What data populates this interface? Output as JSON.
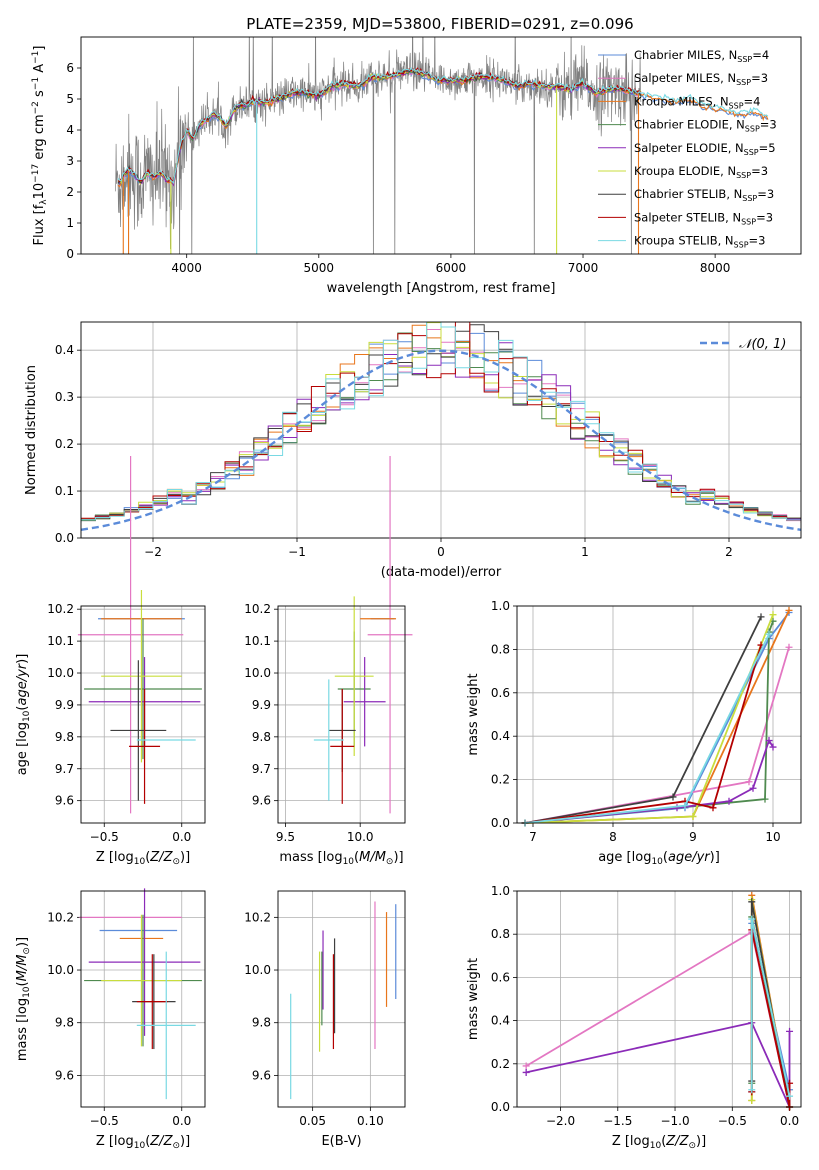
{
  "figure_title": "PLATE=2359, MJD=53800, FIBERID=0291, z=0.096",
  "colors": {
    "chabrier_miles": "#5b8bd9",
    "salpeter_miles": "#e377c2",
    "kroupa_miles": "#e8761c",
    "chabrier_elodie": "#4f8a4f",
    "salpeter_elodie": "#8b2bb8",
    "kroupa_elodie": "#c9dd3d",
    "chabrier_stelib": "#3f3f3f",
    "salpeter_stelib": "#b30000",
    "kroupa_stelib": "#79d9e3",
    "observed": "#808080",
    "normal_curve": "#5b8bd9",
    "grid": "#b0b0b0"
  },
  "chart_data": [
    {
      "id": "spectrum",
      "type": "line",
      "title": "PLATE=2359, MJD=53800, FIBERID=0291, z=0.096",
      "xlabel": "wavelength [Angstrom, rest frame]",
      "ylabel": "Flux [f_λ 10^-17 erg cm^-2 s^-1 A^-1]",
      "xlim": [
        3200,
        8650
      ],
      "ylim": [
        0,
        7
      ],
      "xticks": [
        4000,
        5000,
        6000,
        7000,
        8000
      ],
      "yticks": [
        0,
        1,
        2,
        3,
        4,
        5,
        6
      ],
      "grid": false,
      "legend_position": "top-right",
      "legend": [
        {
          "label": "Chabrier MILES, N_SSP=4",
          "color": "#5b8bd9"
        },
        {
          "label": "Salpeter MILES, N_SSP=3",
          "color": "#e377c2"
        },
        {
          "label": "Kroupa MILES, N_SSP=4",
          "color": "#e8761c"
        },
        {
          "label": "Chabrier ELODIE, N_SSP=3",
          "color": "#4f8a4f"
        },
        {
          "label": "Salpeter ELODIE, N_SSP=5",
          "color": "#8b2bb8"
        },
        {
          "label": "Kroupa ELODIE, N_SSP=3",
          "color": "#c9dd3d"
        },
        {
          "label": "Chabrier STELIB, N_SSP=3",
          "color": "#3f3f3f"
        },
        {
          "label": "Salpeter STELIB, N_SSP=3",
          "color": "#b30000"
        },
        {
          "label": "Kroupa STELIB, N_SSP=3",
          "color": "#79d9e3"
        }
      ],
      "model_curve": {
        "x": [
          3500,
          3530,
          3560,
          3600,
          3650,
          3700,
          3750,
          3800,
          3850,
          3900,
          3950,
          4000,
          4050,
          4100,
          4150,
          4200,
          4250,
          4300,
          4350,
          4400,
          4450,
          4500,
          4550,
          4600,
          4700,
          4800,
          4900,
          5000,
          5100,
          5200,
          5300,
          5400,
          5500,
          5600,
          5700,
          5800,
          5900,
          6000,
          6100,
          6200,
          6300,
          6400,
          6500,
          6600,
          6700,
          6800,
          6900,
          7000,
          7100,
          7200,
          7300,
          7400,
          7500,
          7600,
          7700,
          7800,
          7900,
          8000,
          8100,
          8200,
          8300,
          8400
        ],
        "y": [
          2.3,
          2.6,
          2.7,
          2.6,
          2.3,
          2.6,
          2.5,
          2.6,
          2.4,
          2.3,
          3.4,
          4.0,
          3.7,
          4.2,
          4.3,
          4.5,
          4.4,
          4.1,
          4.6,
          4.8,
          4.8,
          4.9,
          4.9,
          4.9,
          5.0,
          5.2,
          5.2,
          5.1,
          5.4,
          5.5,
          5.4,
          5.7,
          5.7,
          5.8,
          5.9,
          5.8,
          5.6,
          5.6,
          5.6,
          5.7,
          5.7,
          5.6,
          5.4,
          5.5,
          5.4,
          5.4,
          5.3,
          5.5,
          5.2,
          5.3,
          5.3,
          5.2,
          5.1,
          5.0,
          4.9,
          5.0,
          4.8,
          4.7,
          4.6,
          4.5,
          4.6,
          4.4
        ]
      },
      "observed_note": "noisy observed spectrum between 3450 and 7450 Angstrom"
    },
    {
      "id": "residuals",
      "type": "line",
      "xlabel": "(data-model)/error",
      "ylabel": "Normed distribution",
      "xlim": [
        -2.5,
        2.5
      ],
      "ylim": [
        0,
        0.46
      ],
      "xticks": [
        -2,
        -1,
        0,
        1,
        2
      ],
      "yticks": [
        0.0,
        0.1,
        0.2,
        0.3,
        0.4
      ],
      "grid": true,
      "legend_position": "top-right",
      "legend": [
        {
          "label": "N(0,1)",
          "color": "#5b8bd9"
        }
      ],
      "bin_width": 0.1
    },
    {
      "id": "age_vs_Z",
      "type": "scatter",
      "xlabel": "Z [log10(Z/Z☉)]",
      "ylabel": "age [log10(age/yr)]",
      "xlim": [
        -0.65,
        0.15
      ],
      "ylim": [
        9.53,
        10.21
      ],
      "xticks": [
        -0.5,
        0.0
      ],
      "yticks": [
        9.6,
        9.7,
        9.8,
        9.9,
        10.0,
        10.1,
        10.2
      ],
      "grid": true,
      "errorbars": [
        {
          "name": "Chabrier MILES",
          "x": -0.26,
          "y": 10.17,
          "xerr": 0.28,
          "yerr": 0.0
        },
        {
          "name": "Salpeter MILES",
          "x": -0.33,
          "y": 10.12,
          "xerr": 0.34,
          "yerr": 0.56
        },
        {
          "name": "Kroupa MILES",
          "x": -0.26,
          "y": 10.17,
          "xerr": 0.26,
          "yerr": 0.0
        },
        {
          "name": "Chabrier ELODIE",
          "x": -0.25,
          "y": 9.95,
          "xerr": 0.38,
          "yerr": 0.22
        },
        {
          "name": "Salpeter ELODIE",
          "x": -0.24,
          "y": 9.91,
          "xerr": 0.36,
          "yerr": 0.14
        },
        {
          "name": "Kroupa ELODIE",
          "x": -0.26,
          "y": 9.99,
          "xerr": 0.26,
          "yerr": 0.27
        },
        {
          "name": "Chabrier STELIB",
          "x": -0.28,
          "y": 9.82,
          "xerr": 0.18,
          "yerr": 0.22
        },
        {
          "name": "Salpeter STELIB",
          "x": -0.24,
          "y": 9.77,
          "xerr": 0.1,
          "yerr": 0.18
        },
        {
          "name": "Kroupa STELIB",
          "x": -0.1,
          "y": 9.79,
          "xerr": 0.19,
          "yerr": 0.0
        }
      ]
    },
    {
      "id": "age_vs_mass",
      "type": "scatter",
      "xlabel": "mass [log10(M/M☉)]",
      "ylabel": "",
      "xlim": [
        9.45,
        10.3
      ],
      "ylim": [
        9.53,
        10.21
      ],
      "xticks": [
        9.5,
        10.0
      ],
      "yticks": [
        9.6,
        9.7,
        9.8,
        9.9,
        10.0,
        10.1,
        10.2
      ],
      "grid": true,
      "errorbars": [
        {
          "name": "Chabrier MILES",
          "x": 10.15,
          "y": 10.17,
          "xerr": 0.08,
          "yerr": 0.0
        },
        {
          "name": "Salpeter MILES",
          "x": 10.2,
          "y": 10.12,
          "xerr": 0.15,
          "yerr": 0.56
        },
        {
          "name": "Kroupa MILES",
          "x": 10.12,
          "y": 10.17,
          "xerr": 0.12,
          "yerr": 0.0
        },
        {
          "name": "Chabrier ELODIE",
          "x": 9.96,
          "y": 9.95,
          "xerr": 0.11,
          "yerr": 0.18
        },
        {
          "name": "Salpeter ELODIE",
          "x": 10.03,
          "y": 9.91,
          "xerr": 0.14,
          "yerr": 0.14
        },
        {
          "name": "Kroupa ELODIE",
          "x": 9.96,
          "y": 9.99,
          "xerr": 0.13,
          "yerr": 0.25
        },
        {
          "name": "Chabrier STELIB",
          "x": 9.88,
          "y": 9.82,
          "xerr": 0.09,
          "yerr": 0.13
        },
        {
          "name": "Salpeter STELIB",
          "x": 9.88,
          "y": 9.77,
          "xerr": 0.08,
          "yerr": 0.18
        },
        {
          "name": "Kroupa STELIB",
          "x": 9.79,
          "y": 9.79,
          "xerr": 0.1,
          "yerr": 0.19
        }
      ]
    },
    {
      "id": "weight_vs_age",
      "type": "line",
      "xlabel": "age [log10(age/yr)]",
      "ylabel": "mass weight",
      "xlim": [
        6.8,
        10.35
      ],
      "ylim": [
        0,
        1
      ],
      "xticks": [
        7,
        8,
        9,
        10
      ],
      "yticks": [
        0.0,
        0.2,
        0.4,
        0.6,
        0.8,
        1.0
      ],
      "grid": true,
      "series": [
        {
          "name": "Chabrier MILES",
          "x": [
            6.9,
            8.9,
            9.95,
            10.2
          ],
          "y": [
            0.0,
            0.07,
            0.85,
            0.97
          ]
        },
        {
          "name": "Salpeter MILES",
          "x": [
            6.9,
            9.7,
            10.2
          ],
          "y": [
            0.0,
            0.19,
            0.81
          ]
        },
        {
          "name": "Kroupa MILES",
          "x": [
            6.9,
            9.0,
            10.2
          ],
          "y": [
            0.0,
            0.03,
            0.98
          ]
        },
        {
          "name": "Chabrier ELODIE",
          "x": [
            6.9,
            9.9,
            9.95,
            10.0
          ],
          "y": [
            0.0,
            0.11,
            0.88,
            0.93
          ]
        },
        {
          "name": "Salpeter ELODIE",
          "x": [
            6.9,
            8.8,
            9.45,
            9.75,
            9.95,
            10.0
          ],
          "y": [
            0.0,
            0.07,
            0.1,
            0.16,
            0.38,
            0.35
          ]
        },
        {
          "name": "Kroupa ELODIE",
          "x": [
            6.9,
            9.0,
            10.0
          ],
          "y": [
            0.0,
            0.03,
            0.96
          ]
        },
        {
          "name": "Chabrier STELIB",
          "x": [
            6.9,
            8.75,
            9.85
          ],
          "y": [
            0.0,
            0.12,
            0.95
          ]
        },
        {
          "name": "Salpeter STELIB",
          "x": [
            6.9,
            8.9,
            9.25,
            9.85
          ],
          "y": [
            0.0,
            0.1,
            0.07,
            0.82
          ]
        },
        {
          "name": "Kroupa STELIB",
          "x": [
            6.9,
            8.9,
            9.95
          ],
          "y": [
            0.0,
            0.08,
            0.87
          ]
        }
      ]
    },
    {
      "id": "mass_vs_Z",
      "type": "scatter",
      "xlabel": "Z [log10(Z/Z☉)]",
      "ylabel": "mass [log10(M/M☉)]",
      "xlim": [
        -0.65,
        0.15
      ],
      "ylim": [
        9.48,
        10.3
      ],
      "xticks": [
        -0.5,
        0.0
      ],
      "yticks": [
        9.6,
        9.8,
        10.0,
        10.2
      ],
      "grid": true,
      "errorbars": [
        {
          "name": "Chabrier MILES",
          "x": -0.28,
          "y": 10.15,
          "xerr": 0.25,
          "yerr": 0.0
        },
        {
          "name": "Salpeter MILES",
          "x": -0.33,
          "y": 10.2,
          "xerr": 0.33,
          "yerr": 0.0
        },
        {
          "name": "Kroupa MILES",
          "x": -0.26,
          "y": 10.12,
          "xerr": 0.14,
          "yerr": 0.0
        },
        {
          "name": "Chabrier ELODIE",
          "x": -0.25,
          "y": 9.96,
          "xerr": 0.38,
          "yerr": 0.25
        },
        {
          "name": "Salpeter ELODIE",
          "x": -0.24,
          "y": 10.03,
          "xerr": 0.36,
          "yerr": 0.28
        },
        {
          "name": "Kroupa ELODIE",
          "x": -0.26,
          "y": 9.96,
          "xerr": 0.26,
          "yerr": 0.25
        },
        {
          "name": "Chabrier STELIB",
          "x": -0.18,
          "y": 9.88,
          "xerr": 0.14,
          "yerr": 0.18
        },
        {
          "name": "Salpeter STELIB",
          "x": -0.19,
          "y": 9.88,
          "xerr": 0.1,
          "yerr": 0.18
        },
        {
          "name": "Kroupa STELIB",
          "x": -0.1,
          "y": 9.79,
          "xerr": 0.19,
          "yerr": 0.28
        }
      ]
    },
    {
      "id": "ebv",
      "type": "scatter",
      "xlabel": "E(B-V)",
      "ylabel": "",
      "xlim": [
        0.02,
        0.13
      ],
      "ylim": [
        9.48,
        10.3
      ],
      "xticks": [
        0.05,
        0.1
      ],
      "yticks": [
        9.6,
        9.8,
        10.0,
        10.2
      ],
      "grid": true,
      "errorbars": [
        {
          "name": "Chabrier MILES",
          "x": 0.122,
          "y": 10.07,
          "xerr": 0.0,
          "yerr": 0.18
        },
        {
          "name": "Salpeter MILES",
          "x": 0.104,
          "y": 9.98,
          "xerr": 0.0,
          "yerr": 0.28
        },
        {
          "name": "Kroupa MILES",
          "x": 0.114,
          "y": 10.04,
          "xerr": 0.0,
          "yerr": 0.18
        },
        {
          "name": "Chabrier ELODIE",
          "x": 0.058,
          "y": 9.93,
          "xerr": 0.0,
          "yerr": 0.14
        },
        {
          "name": "Salpeter ELODIE",
          "x": 0.059,
          "y": 10.0,
          "xerr": 0.0,
          "yerr": 0.15
        },
        {
          "name": "Kroupa ELODIE",
          "x": 0.056,
          "y": 9.88,
          "xerr": 0.0,
          "yerr": 0.19
        },
        {
          "name": "Chabrier STELIB",
          "x": 0.069,
          "y": 9.94,
          "xerr": 0.0,
          "yerr": 0.18
        },
        {
          "name": "Salpeter STELIB",
          "x": 0.068,
          "y": 9.88,
          "xerr": 0.0,
          "yerr": 0.18
        },
        {
          "name": "Kroupa STELIB",
          "x": 0.031,
          "y": 9.71,
          "xerr": 0.0,
          "yerr": 0.2
        }
      ]
    },
    {
      "id": "weight_vs_Z",
      "type": "line",
      "xlabel": "Z [log10(Z/Z☉)]",
      "ylabel": "mass weight",
      "xlim": [
        -2.38,
        0.1
      ],
      "ylim": [
        0,
        1
      ],
      "xticks": [
        -2.0,
        -1.5,
        -1.0,
        -0.5,
        0.0
      ],
      "yticks": [
        0.0,
        0.2,
        0.4,
        0.6,
        0.8,
        1.0
      ],
      "grid": true,
      "series": [
        {
          "name": "Chabrier MILES",
          "x": [
            -0.33,
            -0.33,
            0.0
          ],
          "y": [
            0.07,
            0.85,
            0.08
          ]
        },
        {
          "name": "Salpeter MILES",
          "x": [
            -2.3,
            -0.33,
            0.0
          ],
          "y": [
            0.19,
            0.81,
            0.0
          ]
        },
        {
          "name": "Kroupa MILES",
          "x": [
            -0.33,
            -0.33,
            0.0
          ],
          "y": [
            0.03,
            0.98,
            0.0
          ]
        },
        {
          "name": "Chabrier ELODIE",
          "x": [
            -0.33,
            -0.33,
            0.0
          ],
          "y": [
            0.11,
            0.88,
            0.0
          ]
        },
        {
          "name": "Salpeter ELODIE",
          "x": [
            -2.3,
            -0.33,
            0.0,
            0.0
          ],
          "y": [
            0.16,
            0.39,
            0.0,
            0.35
          ]
        },
        {
          "name": "Kroupa ELODIE",
          "x": [
            -0.33,
            -0.33,
            0.0
          ],
          "y": [
            0.03,
            0.96,
            0.0
          ]
        },
        {
          "name": "Chabrier STELIB",
          "x": [
            -0.33,
            -0.33,
            0.0
          ],
          "y": [
            0.12,
            0.95,
            0.0
          ]
        },
        {
          "name": "Salpeter STELIB",
          "x": [
            -0.33,
            -0.33,
            0.0,
            0.0
          ],
          "y": [
            0.07,
            0.82,
            0.0,
            0.11
          ]
        },
        {
          "name": "Kroupa STELIB",
          "x": [
            -0.33,
            -0.33,
            0.0
          ],
          "y": [
            0.08,
            0.87,
            0.05
          ]
        }
      ]
    }
  ]
}
